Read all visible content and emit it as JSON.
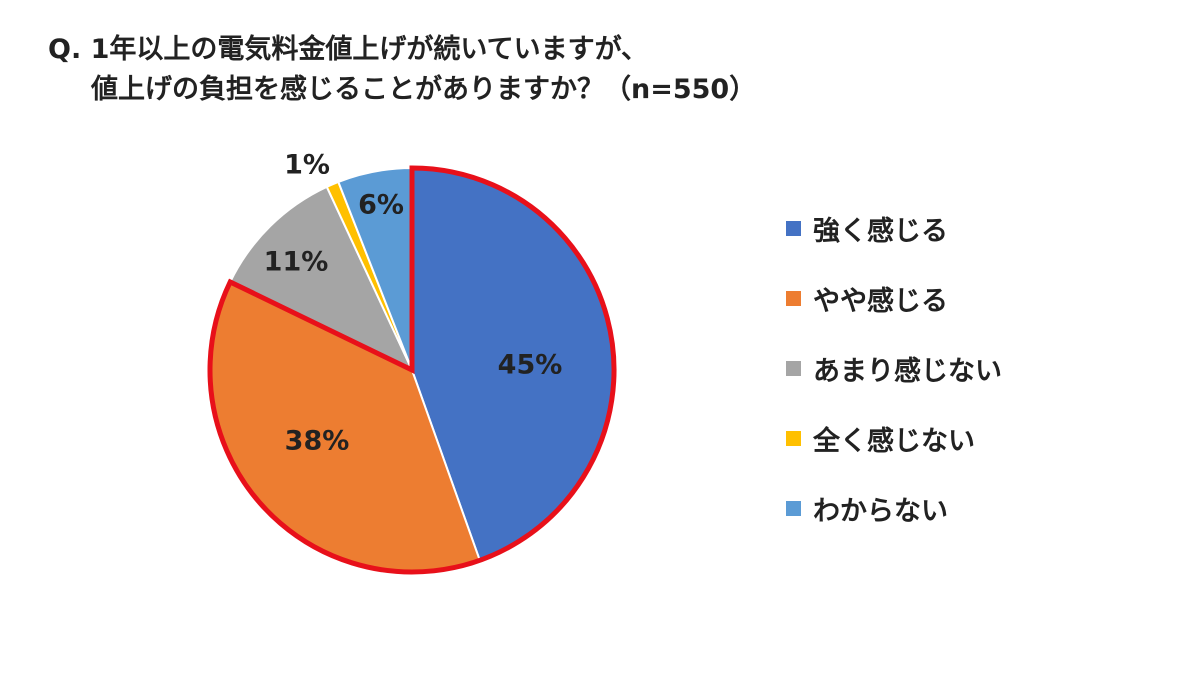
{
  "title": {
    "line1": "Q. 1年以上の電気料金値上げが続いていますが、",
    "line2": "値上げの負担を感じることがありますか？（n=550）"
  },
  "chart_data": {
    "type": "pie",
    "highlighted_categories": [
      "強く感じる",
      "やや感じる"
    ],
    "highlight_color": "#e8101a",
    "slices": [
      {
        "label": "強く感じる",
        "value": 45,
        "display": "45%",
        "color": "#4472c4"
      },
      {
        "label": "やや感じる",
        "value": 38,
        "display": "38%",
        "color": "#ed7d31"
      },
      {
        "label": "あまり感じない",
        "value": 11,
        "display": "11%",
        "color": "#a5a5a5"
      },
      {
        "label": "全く感じない",
        "value": 1,
        "display": "1%",
        "color": "#ffc000"
      },
      {
        "label": "わからない",
        "value": 6,
        "display": "6%",
        "color": "#5b9bd5"
      }
    ],
    "legend_position": "right"
  }
}
